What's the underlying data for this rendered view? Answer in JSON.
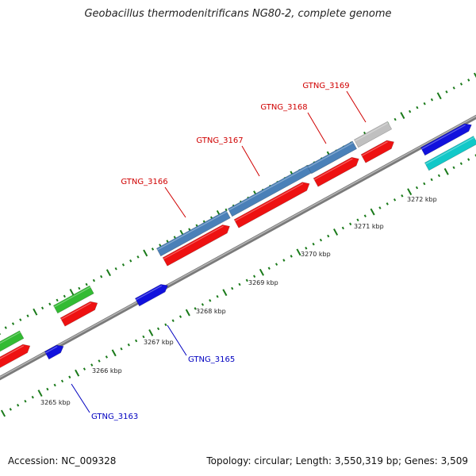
{
  "title": "Geobacillus thermodenitrificans NG80-2, complete genome",
  "footer": {
    "accession": "Accession: NC_009328",
    "summary": "Topology: circular; Length: 3,550,319 bp; Genes: 3,509"
  },
  "colors": {
    "backbone": "#8a8a8a",
    "tick": "#1a7a1a",
    "label_red": "#d00000",
    "label_blue": "#0000c0",
    "cds_red": "#ee1111",
    "cds_blue": "#1111dd",
    "cds_green": "#33bb33",
    "cds_steel": "#4a80b8",
    "cds_grey": "#c0c0c0",
    "cds_cyan": "#11c8c8"
  },
  "kbp_labels": [
    "3265 kbp",
    "3266 kbp",
    "3267 kbp",
    "3268 kbp",
    "3269 kbp",
    "3270 kbp",
    "3271 kbp",
    "3272 kbp"
  ],
  "gene_labels": {
    "top": [
      "GTNG_3166",
      "GTNG_3167",
      "GTNG_3168",
      "GTNG_3169"
    ],
    "bottom": [
      "GTNG_3163",
      "GTNG_3165"
    ]
  }
}
